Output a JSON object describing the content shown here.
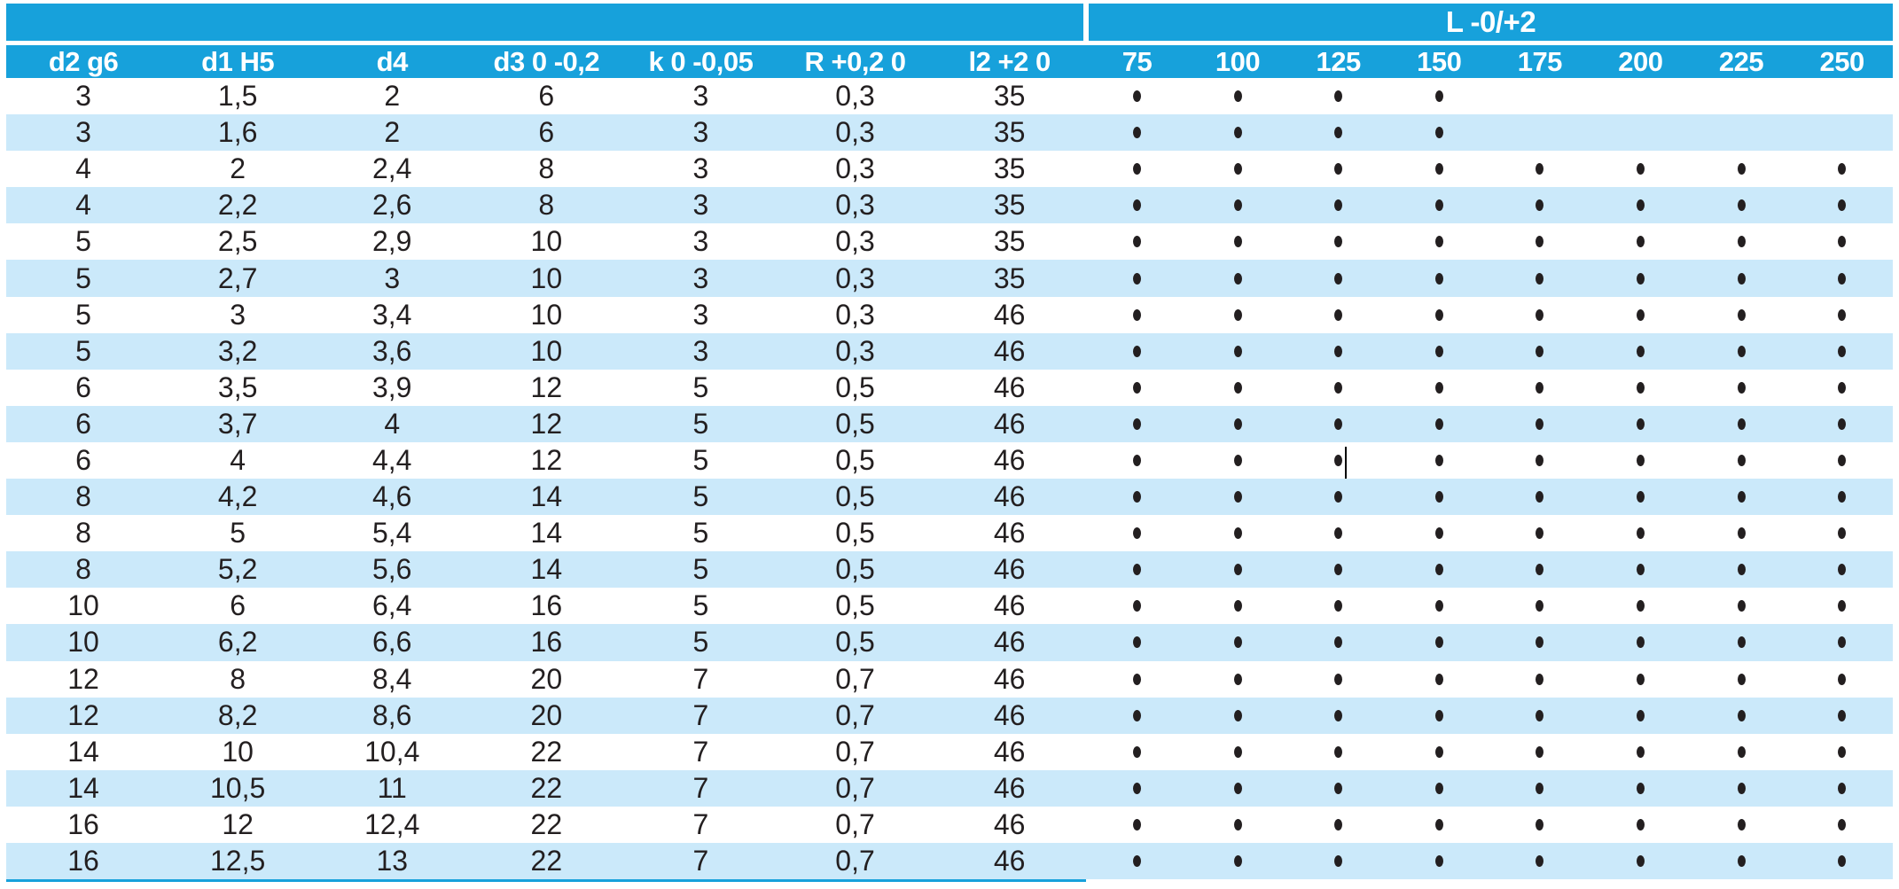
{
  "colors": {
    "accent": "#17A1DB",
    "row_alt": "#CBE9FA",
    "text": "#231F20",
    "header_text": "#FFFFFF"
  },
  "table": {
    "group_header": "L -0/+2",
    "columns": [
      "d2 g6",
      "d1 H5",
      "d4",
      "d3 0 -0,2",
      "k 0 -0,05",
      "R +0,2 0",
      "l2 +2 0"
    ],
    "l_columns": [
      "75",
      "100",
      "125",
      "150",
      "175",
      "200",
      "225",
      "250"
    ],
    "bullet_glyph": "•",
    "rows": [
      {
        "values": [
          "3",
          "1,5",
          "2",
          "6",
          "3",
          "0,3",
          "35"
        ],
        "availability": [
          1,
          1,
          1,
          1,
          0,
          0,
          0,
          0
        ]
      },
      {
        "values": [
          "3",
          "1,6",
          "2",
          "6",
          "3",
          "0,3",
          "35"
        ],
        "availability": [
          1,
          1,
          1,
          1,
          0,
          0,
          0,
          0
        ]
      },
      {
        "values": [
          "4",
          "2",
          "2,4",
          "8",
          "3",
          "0,3",
          "35"
        ],
        "availability": [
          1,
          1,
          1,
          1,
          1,
          1,
          1,
          1
        ]
      },
      {
        "values": [
          "4",
          "2,2",
          "2,6",
          "8",
          "3",
          "0,3",
          "35"
        ],
        "availability": [
          1,
          1,
          1,
          1,
          1,
          1,
          1,
          1
        ]
      },
      {
        "values": [
          "5",
          "2,5",
          "2,9",
          "10",
          "3",
          "0,3",
          "35"
        ],
        "availability": [
          1,
          1,
          1,
          1,
          1,
          1,
          1,
          1
        ]
      },
      {
        "values": [
          "5",
          "2,7",
          "3",
          "10",
          "3",
          "0,3",
          "35"
        ],
        "availability": [
          1,
          1,
          1,
          1,
          1,
          1,
          1,
          1
        ]
      },
      {
        "values": [
          "5",
          "3",
          "3,4",
          "10",
          "3",
          "0,3",
          "46"
        ],
        "availability": [
          1,
          1,
          1,
          1,
          1,
          1,
          1,
          1
        ]
      },
      {
        "values": [
          "5",
          "3,2",
          "3,6",
          "10",
          "3",
          "0,3",
          "46"
        ],
        "availability": [
          1,
          1,
          1,
          1,
          1,
          1,
          1,
          1
        ]
      },
      {
        "values": [
          "6",
          "3,5",
          "3,9",
          "12",
          "5",
          "0,5",
          "46"
        ],
        "availability": [
          1,
          1,
          1,
          1,
          1,
          1,
          1,
          1
        ]
      },
      {
        "values": [
          "6",
          "3,7",
          "4",
          "12",
          "5",
          "0,5",
          "46"
        ],
        "availability": [
          1,
          1,
          1,
          1,
          1,
          1,
          1,
          1
        ]
      },
      {
        "values": [
          "6",
          "4",
          "4,4",
          "12",
          "5",
          "0,5",
          "46"
        ],
        "availability": [
          1,
          1,
          1,
          1,
          1,
          1,
          1,
          1
        ]
      },
      {
        "values": [
          "8",
          "4,2",
          "4,6",
          "14",
          "5",
          "0,5",
          "46"
        ],
        "availability": [
          1,
          1,
          1,
          1,
          1,
          1,
          1,
          1
        ]
      },
      {
        "values": [
          "8",
          "5",
          "5,4",
          "14",
          "5",
          "0,5",
          "46"
        ],
        "availability": [
          1,
          1,
          1,
          1,
          1,
          1,
          1,
          1
        ]
      },
      {
        "values": [
          "8",
          "5,2",
          "5,6",
          "14",
          "5",
          "0,5",
          "46"
        ],
        "availability": [
          1,
          1,
          1,
          1,
          1,
          1,
          1,
          1
        ]
      },
      {
        "values": [
          "10",
          "6",
          "6,4",
          "16",
          "5",
          "0,5",
          "46"
        ],
        "availability": [
          1,
          1,
          1,
          1,
          1,
          1,
          1,
          1
        ]
      },
      {
        "values": [
          "10",
          "6,2",
          "6,6",
          "16",
          "5",
          "0,5",
          "46"
        ],
        "availability": [
          1,
          1,
          1,
          1,
          1,
          1,
          1,
          1
        ]
      },
      {
        "values": [
          "12",
          "8",
          "8,4",
          "20",
          "7",
          "0,7",
          "46"
        ],
        "availability": [
          1,
          1,
          1,
          1,
          1,
          1,
          1,
          1
        ]
      },
      {
        "values": [
          "12",
          "8,2",
          "8,6",
          "20",
          "7",
          "0,7",
          "46"
        ],
        "availability": [
          1,
          1,
          1,
          1,
          1,
          1,
          1,
          1
        ]
      },
      {
        "values": [
          "14",
          "10",
          "10,4",
          "22",
          "7",
          "0,7",
          "46"
        ],
        "availability": [
          1,
          1,
          1,
          1,
          1,
          1,
          1,
          1
        ]
      },
      {
        "values": [
          "14",
          "10,5",
          "11",
          "22",
          "7",
          "0,7",
          "46"
        ],
        "availability": [
          1,
          1,
          1,
          1,
          1,
          1,
          1,
          1
        ]
      },
      {
        "values": [
          "16",
          "12",
          "12,4",
          "22",
          "7",
          "0,7",
          "46"
        ],
        "availability": [
          1,
          1,
          1,
          1,
          1,
          1,
          1,
          1
        ]
      },
      {
        "values": [
          "16",
          "12,5",
          "13",
          "22",
          "7",
          "0,7",
          "46"
        ],
        "availability": [
          1,
          1,
          1,
          1,
          1,
          1,
          1,
          1
        ]
      }
    ]
  },
  "artifacts": {
    "text_cursor": {
      "row": 11,
      "column": "125",
      "position": "right-of-bullet"
    }
  }
}
